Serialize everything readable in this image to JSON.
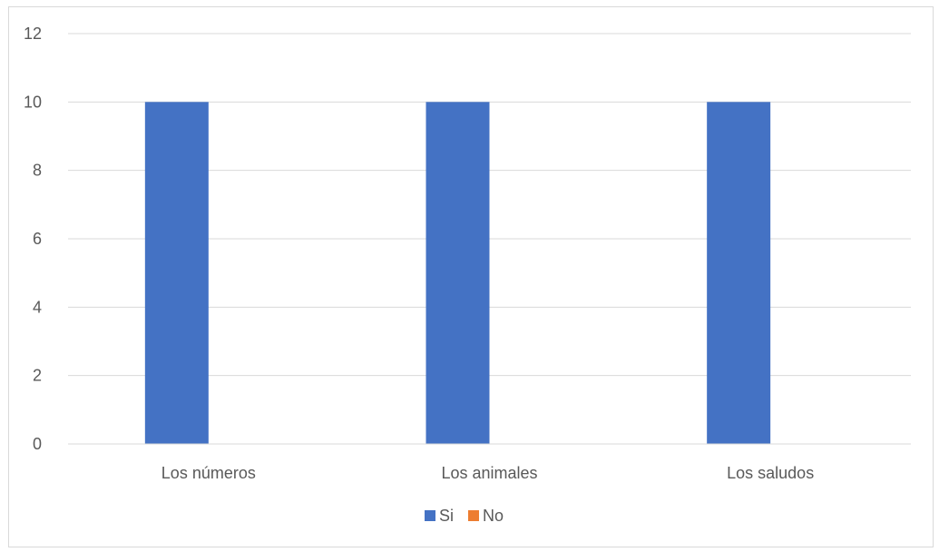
{
  "chart_data": {
    "type": "bar",
    "title": "",
    "xlabel": "",
    "ylabel": "",
    "categories": [
      "Los números",
      "Los animales",
      "Los saludos"
    ],
    "series": [
      {
        "name": "Si",
        "values": [
          10,
          10,
          10
        ],
        "color": "#4472c4"
      },
      {
        "name": "No",
        "values": [
          0,
          0,
          0
        ],
        "color": "#ed7d31"
      }
    ],
    "ylim": [
      0,
      12
    ],
    "yticks": [
      0,
      2,
      4,
      6,
      8,
      10,
      12
    ],
    "grid": true,
    "legend_position": "bottom"
  }
}
